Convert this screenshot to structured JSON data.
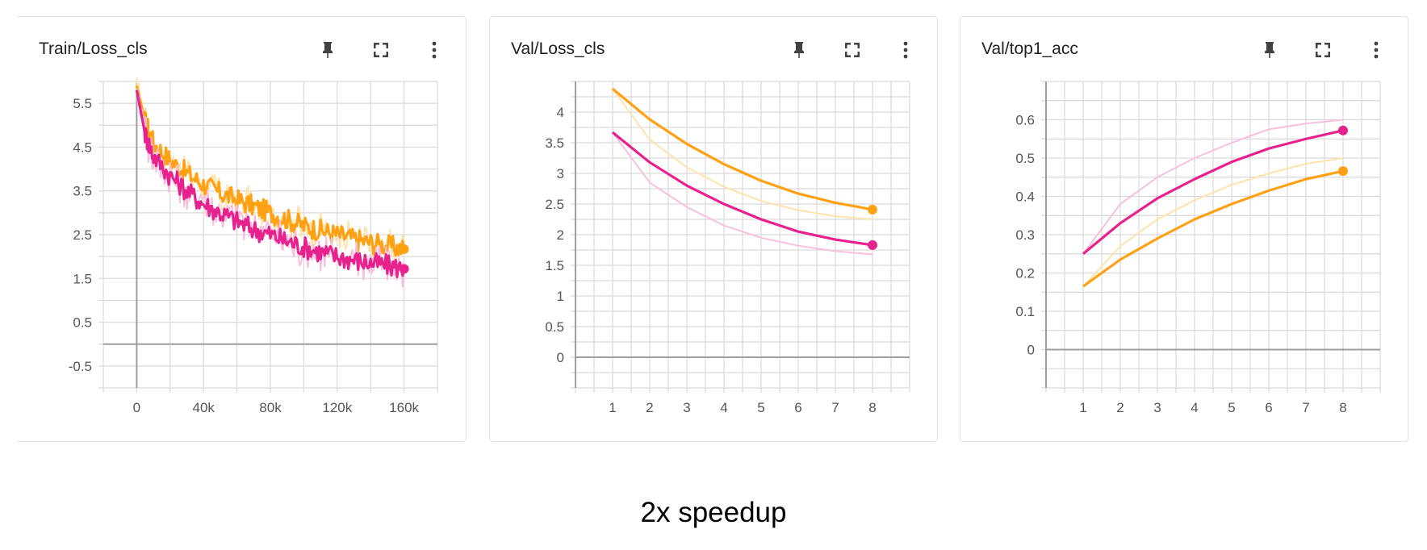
{
  "caption": "2x speedup",
  "colors": {
    "orange": "#ffa113",
    "magenta": "#e7228e",
    "orange_light": "#ffe3ad",
    "magenta_light": "#f7c0dd",
    "grid": "#dadada",
    "axis": "#9e9e9e"
  },
  "icons": [
    "pin-icon",
    "fullscreen-icon",
    "more-vert-icon"
  ],
  "chart_data": [
    {
      "type": "line",
      "title": "Train/Loss_cls",
      "xlim": [
        -20000,
        180000
      ],
      "ylim": [
        -1,
        6
      ],
      "xticks": [
        0,
        40000,
        80000,
        120000,
        160000
      ],
      "xtick_labels": [
        "0",
        "40k",
        "80k",
        "120k",
        "160k"
      ],
      "yticks": [
        5.5,
        4.5,
        3.5,
        2.5,
        1.5,
        0.5,
        -0.5
      ],
      "ytick_labels": [
        "5.5",
        "4.5",
        "3.5",
        "2.5",
        "1.5",
        "0.5",
        "-0.5"
      ],
      "grid": true,
      "series": [
        {
          "color": "orange",
          "x": [
            0,
            5000,
            10000,
            20000,
            30000,
            40000,
            50000,
            60000,
            70000,
            80000,
            90000,
            100000,
            110000,
            120000,
            130000,
            140000,
            150000,
            160000
          ],
          "y": [
            5.9,
            5.1,
            4.6,
            4.2,
            3.9,
            3.65,
            3.45,
            3.3,
            3.15,
            3.0,
            2.85,
            2.7,
            2.6,
            2.5,
            2.4,
            2.32,
            2.25,
            2.17
          ]
        },
        {
          "color": "magenta",
          "x": [
            0,
            5000,
            10000,
            20000,
            30000,
            40000,
            50000,
            60000,
            70000,
            80000,
            90000,
            100000,
            110000,
            120000,
            130000,
            140000,
            150000,
            160000
          ],
          "y": [
            5.8,
            4.8,
            4.3,
            3.85,
            3.5,
            3.2,
            3.0,
            2.8,
            2.62,
            2.5,
            2.35,
            2.22,
            2.1,
            2.0,
            1.92,
            1.85,
            1.8,
            1.72
          ]
        }
      ]
    },
    {
      "type": "line",
      "title": "Val/Loss_cls",
      "xlim": [
        0,
        9
      ],
      "ylim": [
        -0.5,
        4.5
      ],
      "xticks": [
        1,
        2,
        3,
        4,
        5,
        6,
        7,
        8
      ],
      "xtick_labels": [
        "1",
        "2",
        "3",
        "4",
        "5",
        "6",
        "7",
        "8"
      ],
      "yticks": [
        4,
        3.5,
        3,
        2.5,
        2,
        1.5,
        1,
        0.5,
        0
      ],
      "ytick_labels": [
        "4",
        "3.5",
        "3",
        "2.5",
        "2",
        "1.5",
        "1",
        "0.5",
        "0"
      ],
      "grid": true,
      "series": [
        {
          "color": "orange_light",
          "x": [
            1,
            2,
            3,
            4,
            5,
            6,
            7,
            8
          ],
          "y": [
            4.38,
            3.55,
            3.1,
            2.78,
            2.55,
            2.4,
            2.3,
            2.25
          ]
        },
        {
          "color": "magenta_light",
          "x": [
            1,
            2,
            3,
            4,
            5,
            6,
            7,
            8
          ],
          "y": [
            3.67,
            2.85,
            2.45,
            2.15,
            1.95,
            1.82,
            1.73,
            1.68
          ]
        },
        {
          "color": "orange",
          "x": [
            1,
            2,
            3,
            4,
            5,
            6,
            7,
            8
          ],
          "y": [
            4.38,
            3.88,
            3.48,
            3.15,
            2.88,
            2.67,
            2.52,
            2.41
          ]
        },
        {
          "color": "magenta",
          "x": [
            1,
            2,
            3,
            4,
            5,
            6,
            7,
            8
          ],
          "y": [
            3.67,
            3.18,
            2.8,
            2.5,
            2.25,
            2.05,
            1.92,
            1.83
          ]
        }
      ]
    },
    {
      "type": "line",
      "title": "Val/top1_acc",
      "xlim": [
        0,
        9
      ],
      "ylim": [
        -0.1,
        0.7
      ],
      "xticks": [
        1,
        2,
        3,
        4,
        5,
        6,
        7,
        8
      ],
      "xtick_labels": [
        "1",
        "2",
        "3",
        "4",
        "5",
        "6",
        "7",
        "8"
      ],
      "yticks": [
        0.6,
        0.5,
        0.4,
        0.3,
        0.2,
        0.1,
        0
      ],
      "ytick_labels": [
        "0.6",
        "0.5",
        "0.4",
        "0.3",
        "0.2",
        "0.1",
        "0"
      ],
      "grid": true,
      "series": [
        {
          "color": "magenta_light",
          "x": [
            1,
            2,
            3,
            4,
            5,
            6,
            7,
            8
          ],
          "y": [
            0.25,
            0.38,
            0.45,
            0.5,
            0.54,
            0.575,
            0.59,
            0.6
          ]
        },
        {
          "color": "orange_light",
          "x": [
            1,
            2,
            3,
            4,
            5,
            6,
            7,
            8
          ],
          "y": [
            0.165,
            0.27,
            0.34,
            0.39,
            0.43,
            0.46,
            0.485,
            0.5
          ]
        },
        {
          "color": "magenta",
          "x": [
            1,
            2,
            3,
            4,
            5,
            6,
            7,
            8
          ],
          "y": [
            0.25,
            0.33,
            0.395,
            0.445,
            0.49,
            0.525,
            0.55,
            0.572
          ]
        },
        {
          "color": "orange",
          "x": [
            1,
            2,
            3,
            4,
            5,
            6,
            7,
            8
          ],
          "y": [
            0.165,
            0.235,
            0.29,
            0.34,
            0.38,
            0.415,
            0.445,
            0.466
          ]
        }
      ]
    }
  ]
}
